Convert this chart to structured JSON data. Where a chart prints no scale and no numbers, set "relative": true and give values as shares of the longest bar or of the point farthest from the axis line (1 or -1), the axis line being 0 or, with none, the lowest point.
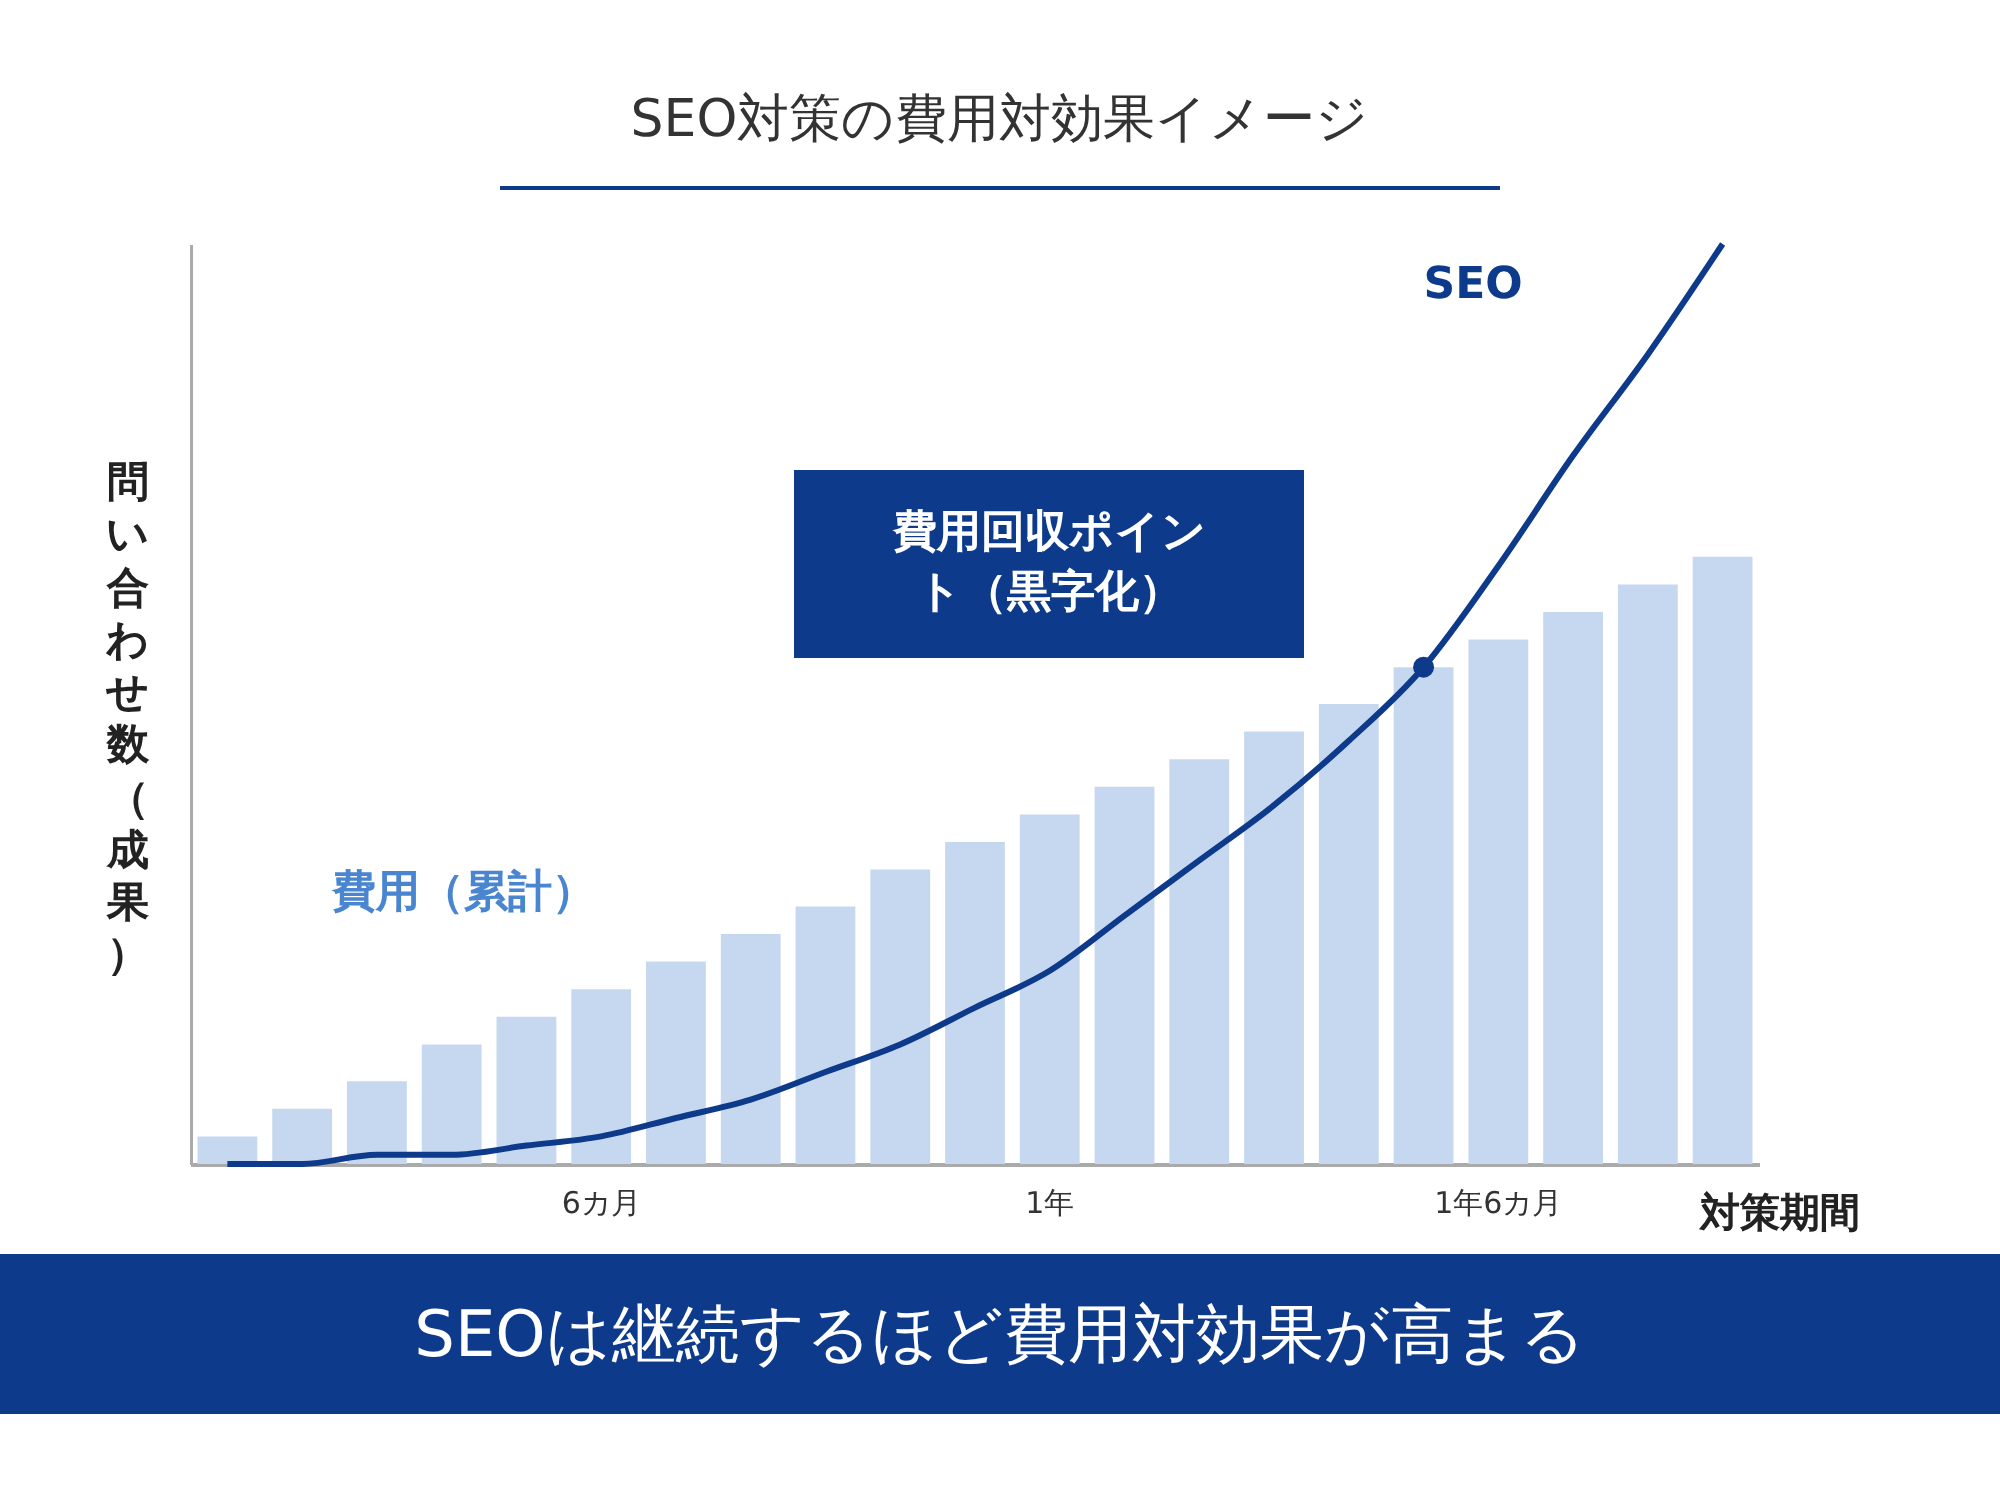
{
  "chart_data": {
    "type": "bar",
    "title": "SEO対策の費用対効果イメージ",
    "xlabel": "対策期間",
    "ylabel": "問い合わせ数（成果）",
    "relative": true,
    "categories": [
      null,
      null,
      null,
      null,
      null,
      "6カ月",
      null,
      null,
      null,
      null,
      null,
      "1年",
      null,
      null,
      null,
      null,
      null,
      "1年6カ月",
      null,
      null,
      null
    ],
    "series": [
      {
        "name": "費用（累計）",
        "color": "#c6d8ef",
        "values": [
          0.03,
          0.06,
          0.09,
          0.13,
          0.16,
          0.19,
          0.22,
          0.25,
          0.28,
          0.32,
          0.35,
          0.38,
          0.41,
          0.44,
          0.47,
          0.5,
          0.54,
          0.57,
          0.6,
          0.63,
          0.66
        ]
      },
      {
        "name": "SEO",
        "type": "line",
        "color": "#0d3a8a",
        "values": [
          0,
          0,
          0.01,
          0.01,
          0.02,
          0.03,
          0.05,
          0.07,
          0.1,
          0.13,
          0.17,
          0.21,
          0.27,
          0.33,
          0.39,
          0.46,
          0.54,
          0.65,
          0.77,
          0.88,
          1
        ]
      },
      {
        "type": "scatter",
        "color": "#0d3a8a",
        "marker": "circle",
        "values": [
          null,
          null,
          null,
          null,
          null,
          null,
          null,
          null,
          null,
          null,
          null,
          null,
          null,
          null,
          null,
          null,
          0.54,
          null,
          null,
          null,
          null
        ]
      }
    ],
    "annotations": [
      "費用回収ポイント（黒字化）",
      "SEOは継続するほど費用対効果が高まる"
    ]
  }
}
